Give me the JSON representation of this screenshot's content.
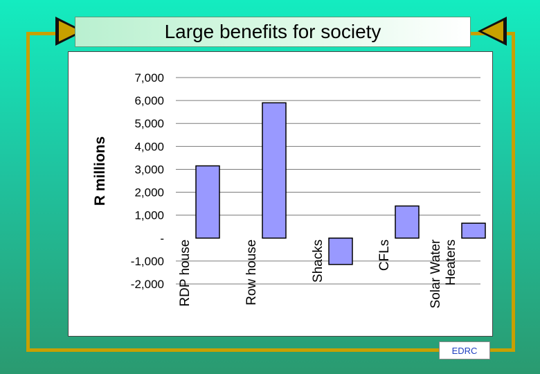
{
  "title": "Large benefits for society",
  "footer": "EDRC",
  "colors": {
    "bar_fill": "#9999ff",
    "frame": "#c8a000"
  },
  "chart_data": {
    "type": "bar",
    "title": "Large benefits for society",
    "xlabel": "",
    "ylabel": "R millions",
    "ylim": [
      -2000,
      7000
    ],
    "yticks": [
      7000,
      6000,
      5000,
      4000,
      3000,
      2000,
      1000,
      0,
      -1000,
      -2000
    ],
    "yticklabels": [
      "7,000",
      "6,000",
      "5,000",
      "4,000",
      "3,000",
      "2,000",
      "1,000",
      "-",
      "-1,000",
      "-2,000"
    ],
    "categories": [
      [
        "RDP house"
      ],
      [
        "Row house"
      ],
      [
        "Shacks"
      ],
      [
        "CFLs"
      ],
      [
        "Solar Water",
        "Heaters"
      ]
    ],
    "values": [
      3150,
      5900,
      -1150,
      1400,
      650
    ],
    "grid": "horizontal"
  }
}
